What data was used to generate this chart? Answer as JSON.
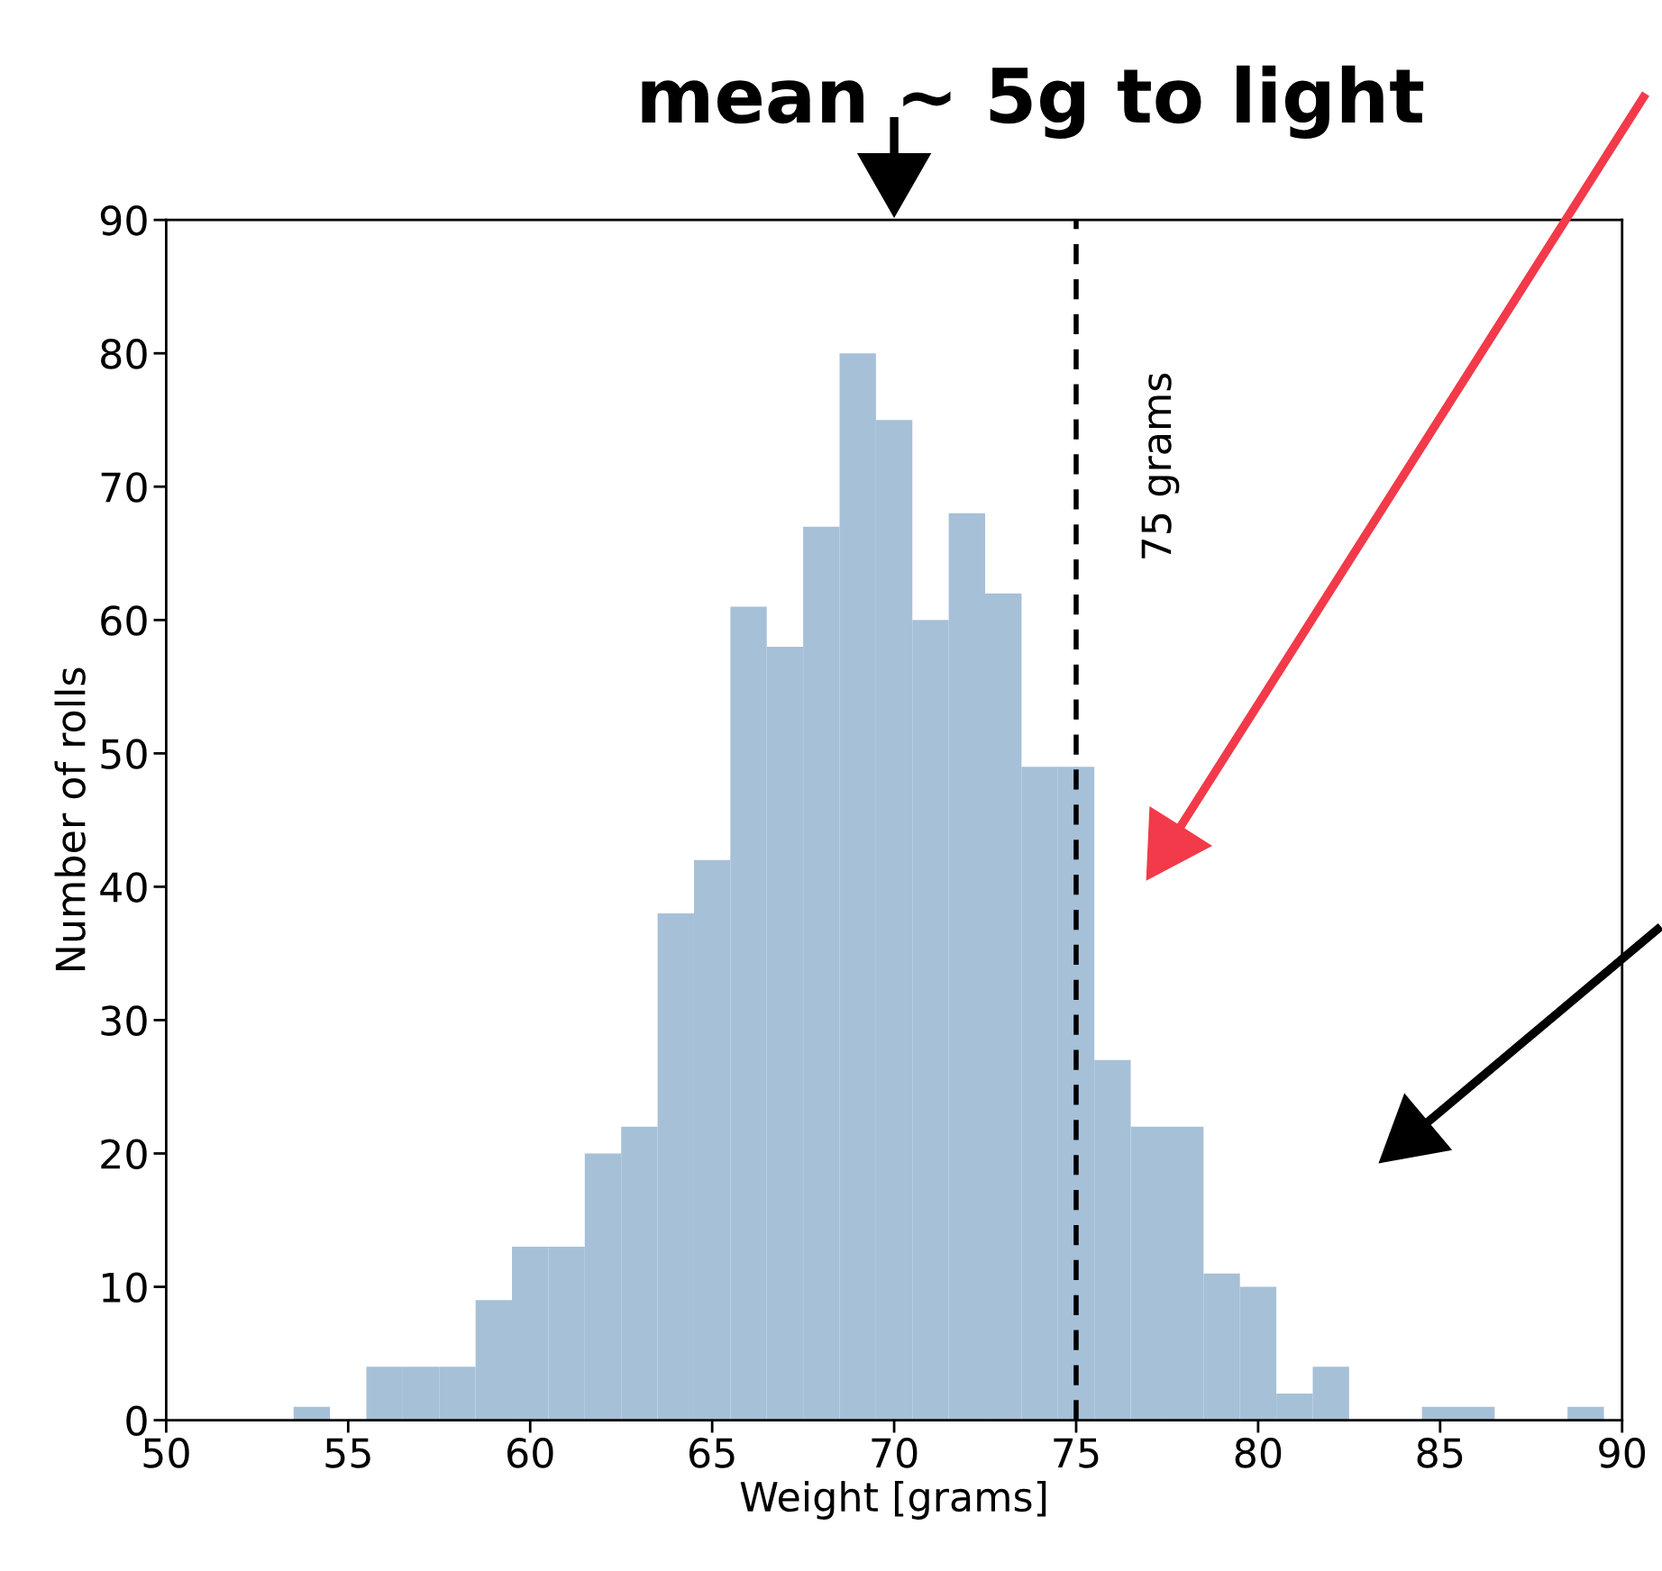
{
  "chart_data": {
    "type": "histogram",
    "xlabel": "Weight [grams]",
    "ylabel": "Number of rolls",
    "bins": [
      53.5,
      54.5,
      55.5,
      56.5,
      57.5,
      58.5,
      59.5,
      60.5,
      61.5,
      62.5,
      63.5,
      64.5,
      65.5,
      66.5,
      67.5,
      68.5,
      69.5,
      70.5,
      71.5,
      72.5,
      73.5,
      74.5,
      75.5,
      76.5,
      77.5,
      78.5,
      79.5,
      80.5,
      81.5,
      82.5,
      83.5,
      84.5,
      85.5,
      86.5,
      87.5,
      88.5,
      89.5
    ],
    "values": [
      1,
      0,
      4,
      4,
      4,
      9,
      13,
      13,
      20,
      22,
      38,
      42,
      61,
      58,
      67,
      80,
      75,
      60,
      68,
      62,
      49,
      49,
      27,
      22,
      22,
      11,
      10,
      2,
      4,
      0,
      0,
      1,
      1,
      0,
      0,
      1
    ],
    "color": "#a6c0d8",
    "xlim": [
      50,
      90
    ],
    "xticks": [
      50,
      55,
      60,
      65,
      70,
      75,
      80,
      85,
      90
    ],
    "ylim": [
      0,
      90
    ],
    "yticks": [
      0,
      10,
      20,
      30,
      40,
      50,
      60,
      70,
      80,
      90
    ],
    "grid": false,
    "ref_lines": [
      {
        "axis": "x",
        "value": 75,
        "label": "75 grams",
        "color": "#000000",
        "line_style": "dashed"
      }
    ],
    "annotations": [
      "mean ~ 5g to light"
    ]
  }
}
